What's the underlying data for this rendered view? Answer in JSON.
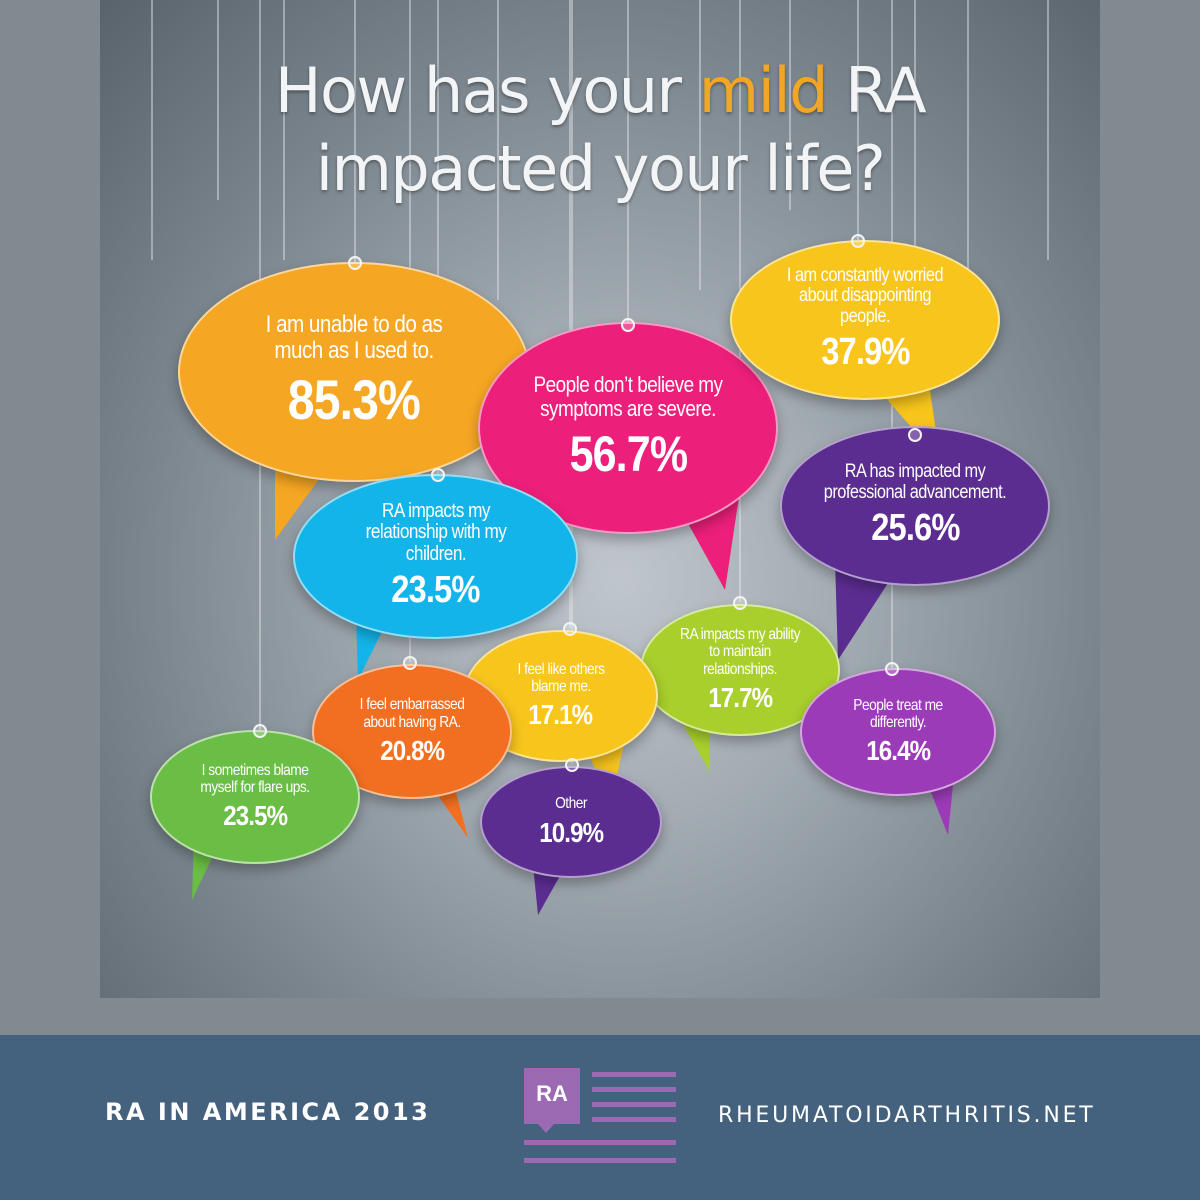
{
  "title": {
    "line1_before": "How has your ",
    "line1_accent": "mild",
    "line1_after": " RA",
    "line2": "impacted your life?",
    "accent_color": "#f2a623"
  },
  "bubbles": [
    {
      "id": "unable",
      "text": "I am unable to do as much as I used to.",
      "value": "85.3%",
      "percent": 85.3,
      "color": "#f5a623"
    },
    {
      "id": "believe",
      "text": "People don’t believe my symptoms are severe.",
      "value": "56.7%",
      "percent": 56.7,
      "color": "#ec1f7a"
    },
    {
      "id": "worried",
      "text": "I am constantly worried about disappointing people.",
      "value": "37.9%",
      "percent": 37.9,
      "color": "#f8c51c"
    },
    {
      "id": "professional",
      "text": "RA has impacted my professional advancement.",
      "value": "25.6%",
      "percent": 25.6,
      "color": "#5b2d91"
    },
    {
      "id": "children",
      "text": "RA impacts my relationship with my children.",
      "value": "23.5%",
      "percent": 23.5,
      "color": "#13b4e9"
    },
    {
      "id": "maintain",
      "text": "RA impacts my ability to maintain relationships.",
      "value": "17.7%",
      "percent": 17.7,
      "color": "#a8cf2c"
    },
    {
      "id": "blame-others",
      "text": "I feel like others blame me.",
      "value": "17.1%",
      "percent": 17.1,
      "color": "#f8c51c"
    },
    {
      "id": "embarrassed",
      "text": "I feel embarrassed about having RA.",
      "value": "20.8%",
      "percent": 20.8,
      "color": "#f26f21"
    },
    {
      "id": "treat",
      "text": "People treat me differently.",
      "value": "16.4%",
      "percent": 16.4,
      "color": "#9c3bb8"
    },
    {
      "id": "blame-self",
      "text": "I sometimes blame myself for flare ups.",
      "value": "23.5%",
      "percent": 23.5,
      "color": "#6abd45"
    },
    {
      "id": "other",
      "text": "Other",
      "value": "10.9%",
      "percent": 10.9,
      "color": "#5b2d91"
    }
  ],
  "footer": {
    "left_text": "RA IN AMERICA 2013",
    "logo_text": "RA",
    "right_text": "RHEUMATOIDARTHRITIS.NET"
  }
}
